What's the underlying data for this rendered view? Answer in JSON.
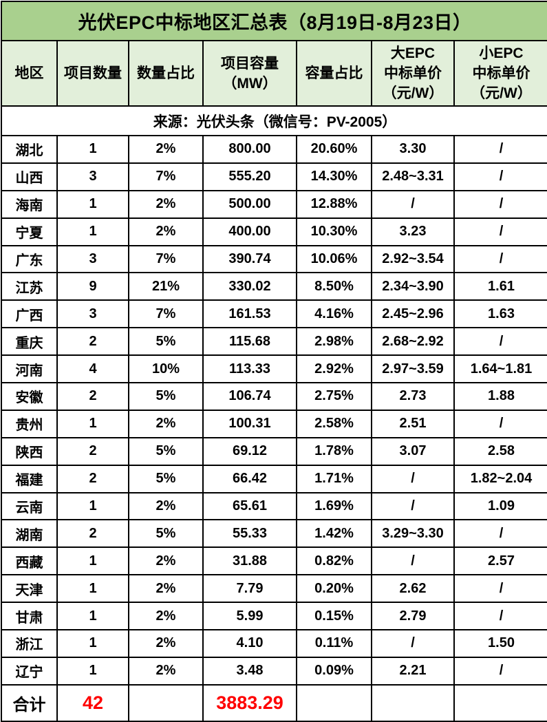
{
  "title": "光伏EPC中标地区汇总表（8月19日-8月23日）",
  "source_note": "来源：光伏头条（微信号：PV-2005）",
  "colors": {
    "title_bg": "#A9D08E",
    "header_bg": "#E2EFDA",
    "border": "#000000",
    "text": "#000000",
    "highlight_red": "#FF0000",
    "body_bg": "#FFFFFF"
  },
  "chart_data": {
    "type": "table",
    "title": "光伏EPC中标地区汇总表（8月19日-8月23日）",
    "source": "来源：光伏头条（微信号：PV-2005）",
    "columns": [
      {
        "key": "region",
        "lines": [
          "地区"
        ]
      },
      {
        "key": "project_count",
        "lines": [
          "项目数量"
        ]
      },
      {
        "key": "count_share",
        "lines": [
          "数量占比"
        ]
      },
      {
        "key": "capacity_mw",
        "lines": [
          "项目容量",
          "（MW）"
        ]
      },
      {
        "key": "capacity_share",
        "lines": [
          "容量占比"
        ]
      },
      {
        "key": "large_epc_price",
        "lines": [
          "大EPC",
          "中标单价",
          "（元/W）"
        ]
      },
      {
        "key": "small_epc_price",
        "lines": [
          "小EPC",
          "中标单价",
          "（元/W）"
        ]
      }
    ],
    "rows": [
      [
        "湖北",
        "1",
        "2%",
        "800.00",
        "20.60%",
        "3.30",
        "/"
      ],
      [
        "山西",
        "3",
        "7%",
        "555.20",
        "14.30%",
        "2.48~3.31",
        "/"
      ],
      [
        "海南",
        "1",
        "2%",
        "500.00",
        "12.88%",
        "/",
        "/"
      ],
      [
        "宁夏",
        "1",
        "2%",
        "400.00",
        "10.30%",
        "3.23",
        "/"
      ],
      [
        "广东",
        "3",
        "7%",
        "390.74",
        "10.06%",
        "2.92~3.54",
        "/"
      ],
      [
        "江苏",
        "9",
        "21%",
        "330.02",
        "8.50%",
        "2.34~3.90",
        "1.61"
      ],
      [
        "广西",
        "3",
        "7%",
        "161.53",
        "4.16%",
        "2.45~2.96",
        "1.63"
      ],
      [
        "重庆",
        "2",
        "5%",
        "115.68",
        "2.98%",
        "2.68~2.92",
        "/"
      ],
      [
        "河南",
        "4",
        "10%",
        "113.33",
        "2.92%",
        "2.97~3.59",
        "1.64~1.81"
      ],
      [
        "安徽",
        "2",
        "5%",
        "106.74",
        "2.75%",
        "2.73",
        "1.88"
      ],
      [
        "贵州",
        "1",
        "2%",
        "100.31",
        "2.58%",
        "2.51",
        "/"
      ],
      [
        "陕西",
        "2",
        "5%",
        "69.12",
        "1.78%",
        "3.07",
        "2.58"
      ],
      [
        "福建",
        "2",
        "5%",
        "66.42",
        "1.71%",
        "/",
        "1.82~2.04"
      ],
      [
        "云南",
        "1",
        "2%",
        "65.61",
        "1.69%",
        "/",
        "1.09"
      ],
      [
        "湖南",
        "2",
        "5%",
        "55.33",
        "1.42%",
        "3.29~3.30",
        "/"
      ],
      [
        "西藏",
        "1",
        "2%",
        "31.88",
        "0.82%",
        "/",
        "2.57"
      ],
      [
        "天津",
        "1",
        "2%",
        "7.79",
        "0.20%",
        "2.62",
        "/"
      ],
      [
        "甘肃",
        "1",
        "2%",
        "5.99",
        "0.15%",
        "2.79",
        "/"
      ],
      [
        "浙江",
        "1",
        "2%",
        "4.10",
        "0.11%",
        "/",
        "1.50"
      ],
      [
        "辽宁",
        "1",
        "2%",
        "3.48",
        "0.09%",
        "2.21",
        "/"
      ]
    ],
    "total_row": {
      "label": "合计",
      "values": [
        "42",
        "",
        "3883.29",
        "",
        "",
        ""
      ]
    }
  }
}
